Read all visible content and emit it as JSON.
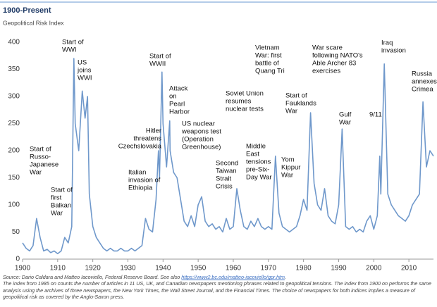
{
  "chart_data": {
    "type": "line",
    "title": "1900-Present",
    "subtitle": "Geopolitical Risk Index",
    "x": [
      1900,
      1901,
      1902,
      1903,
      1904,
      1905,
      1906,
      1907,
      1908,
      1909,
      1910,
      1911,
      1912,
      1913,
      1914,
      1914.6,
      1915,
      1916,
      1917,
      1917.8,
      1918.5,
      1919,
      1920,
      1921,
      1922,
      1923,
      1924,
      1925,
      1926,
      1927,
      1928,
      1929,
      1930,
      1931,
      1932,
      1933,
      1934,
      1935,
      1936,
      1937,
      1938,
      1938.7,
      1939,
      1939.7,
      1940,
      1941,
      1941.9,
      1942,
      1943,
      1944,
      1945,
      1946,
      1947,
      1948,
      1949,
      1950,
      1951,
      1952,
      1953,
      1954,
      1955,
      1956,
      1957,
      1958,
      1959,
      1960,
      1961,
      1962,
      1963,
      1964,
      1965,
      1966,
      1967,
      1968,
      1969,
      1970,
      1971,
      1972,
      1973,
      1974,
      1975,
      1976,
      1977,
      1978,
      1979,
      1980,
      1981,
      1982,
      1983,
      1984,
      1985,
      1986,
      1987,
      1988,
      1989,
      1990,
      1991,
      1992,
      1993,
      1994,
      1995,
      1996,
      1997,
      1998,
      1999,
      2000,
      2001,
      2001.7,
      2002,
      2003,
      2004,
      2005,
      2006,
      2007,
      2008,
      2009,
      2010,
      2011,
      2012,
      2013,
      2014,
      2015,
      2016,
      2017
    ],
    "series": [
      {
        "color": "#6f98cb",
        "values": [
          30,
          20,
          15,
          25,
          75,
          40,
          15,
          18,
          12,
          15,
          10,
          15,
          40,
          30,
          60,
          370,
          250,
          200,
          310,
          260,
          300,
          120,
          60,
          40,
          30,
          20,
          15,
          20,
          15,
          15,
          20,
          15,
          15,
          20,
          15,
          20,
          25,
          75,
          55,
          50,
          110,
          200,
          150,
          345,
          250,
          170,
          255,
          200,
          160,
          150,
          110,
          70,
          60,
          80,
          60,
          100,
          115,
          70,
          60,
          65,
          55,
          60,
          50,
          75,
          55,
          60,
          130,
          90,
          60,
          55,
          70,
          60,
          75,
          60,
          55,
          60,
          55,
          190,
          85,
          60,
          55,
          50,
          55,
          60,
          80,
          110,
          90,
          270,
          140,
          100,
          90,
          130,
          80,
          70,
          65,
          100,
          240,
          60,
          55,
          60,
          50,
          55,
          50,
          70,
          80,
          55,
          80,
          190,
          120,
          360,
          120,
          100,
          90,
          80,
          75,
          70,
          80,
          100,
          110,
          120,
          290,
          170,
          200,
          190
        ]
      }
    ],
    "xlim": [
      1900,
      2017
    ],
    "ylim": [
      0,
      400
    ],
    "xticks": [
      1900,
      1910,
      1920,
      1930,
      1940,
      1950,
      1960,
      1970,
      1980,
      1990,
      2000,
      2010
    ],
    "yticks": [
      0,
      50,
      100,
      150,
      200,
      250,
      300,
      350,
      400
    ],
    "grid": false,
    "annotations": [
      [
        "Start of",
        "Russo-",
        "Japanese",
        "War"
      ],
      [
        "Start of",
        "first",
        "Balkan",
        "War"
      ],
      [
        "Start of",
        "WWI"
      ],
      [
        "US",
        "joins",
        "WWI"
      ],
      [
        "Hitler",
        "threatens",
        "Czechslovakia"
      ],
      [
        "Italian",
        "invasion of",
        "Ethiopia"
      ],
      [
        "Start of",
        "WWII"
      ],
      [
        "Attack",
        "on",
        "Pearl",
        "Harbor"
      ],
      [
        "US nuclear",
        "weapons test",
        "(Operation",
        "Greenhouse)"
      ],
      [
        "Second",
        "Taiwan",
        "Strait",
        "Crisis"
      ],
      [
        "Soviet Union",
        "resumes",
        "nuclear tests"
      ],
      [
        "Middle",
        "East",
        "tensions",
        "pre-Six-",
        "Day War"
      ],
      [
        "Vietnam",
        "War: first",
        "battle of",
        "Quang Tri"
      ],
      [
        "Yom",
        "Kippur",
        "War"
      ],
      [
        "Start of",
        "Fauklands",
        "War"
      ],
      [
        "War scare",
        "following NATO's",
        "Able Archer 83",
        "exercises"
      ],
      [
        "Gulf",
        "War"
      ],
      [
        "9/11"
      ],
      [
        "Iraq",
        "invasion"
      ],
      [
        "Russia",
        "annexes",
        "Crimea"
      ]
    ],
    "source": "Source: Dario Caldara and Matteo Iacoviello, Federal Reserve Board. See also",
    "source_link": "https://www2.bc.edu/matteo-iacoviello/gpr.htm",
    "note": "The index from 1985 on counts the number of articles in 11 US, UK, and Canadian newspapers mentioning phrases related to geopolitical tensions. The index from 1900 on performs the same analysis using the archives of three newspapers, the New York Times, the Wall Street Journal, and the Financial Times. The choice of newspapers for both indices implies a measure of geopolitical risk as covered by the Anglo-Saxon press."
  }
}
